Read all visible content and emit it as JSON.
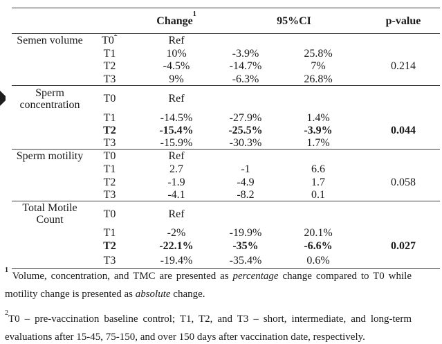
{
  "table": {
    "headers": {
      "change": "Change",
      "change_sup": "1",
      "ci": "95%CI",
      "pvalue": "p-value"
    },
    "sections": [
      {
        "label": "Semen volume",
        "pvalue": "0.214",
        "rows": [
          {
            "time": "T0",
            "time_sup": "2",
            "change": "Ref"
          },
          {
            "time": "T1",
            "change": "10%",
            "ci_low": "-3.9%",
            "ci_high": "25.8%"
          },
          {
            "time": "T2",
            "change": "-4.5%",
            "ci_low": "-14.7%",
            "ci_high": "7%"
          },
          {
            "time": "T3",
            "change": "9%",
            "ci_low": "-6.3%",
            "ci_high": "26.8%"
          }
        ]
      },
      {
        "label": "Sperm concentration",
        "pvalue": "0.044",
        "rows": [
          {
            "time": "T0",
            "change": "Ref"
          },
          {
            "time": "T1",
            "change": "-14.5%",
            "ci_low": "-27.9%",
            "ci_high": "1.4%"
          },
          {
            "time": "T2",
            "change": "-15.4%",
            "ci_low": "-25.5%",
            "ci_high": "-3.9%"
          },
          {
            "time": "T3",
            "change": "-15.9%",
            "ci_low": "-30.3%",
            "ci_high": "1.7%"
          }
        ]
      },
      {
        "label": "Sperm motility",
        "pvalue": "0.058",
        "rows": [
          {
            "time": "T0",
            "change": "Ref"
          },
          {
            "time": "T1",
            "change": "2.7",
            "ci_low": "-1",
            "ci_high": "6.6"
          },
          {
            "time": "T2",
            "change": "-1.9",
            "ci_low": "-4.9",
            "ci_high": "1.7"
          },
          {
            "time": "T3",
            "change": "-4.1",
            "ci_low": "-8.2",
            "ci_high": "0.1"
          }
        ]
      },
      {
        "label": "Total Motile Count",
        "pvalue": "0.027",
        "rows": [
          {
            "time": "T0",
            "change": "Ref"
          },
          {
            "time": "T1",
            "change": "-2%",
            "ci_low": "-19.9%",
            "ci_high": "20.1%"
          },
          {
            "time": "T2",
            "change": "-22.1%",
            "ci_low": "-35%",
            "ci_high": "-6.6%"
          },
          {
            "time": "T3",
            "change": "-19.4%",
            "ci_low": "-35.4%",
            "ci_high": "0.6%"
          }
        ]
      }
    ]
  },
  "footnotes": {
    "fn1": {
      "sup": "1",
      "part1": " Volume, concentration, and TMC are presented as ",
      "italic1": "percentage",
      "part2": " change compared to T0 while motility change is presented as ",
      "italic2": "absolute",
      "part3": " change."
    },
    "fn2": {
      "sup": "2",
      "text": "T0 – pre-vaccination baseline control; T1, T2, and T3 – short, intermediate, and long-term evaluations after 15-45, 75-150, and over 150 days after vaccination date, respectively."
    }
  }
}
